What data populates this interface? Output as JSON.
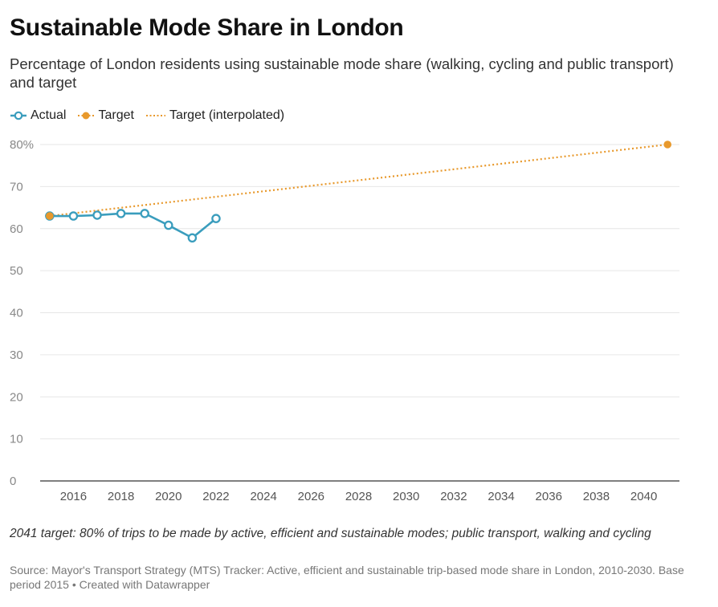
{
  "title": "Sustainable Mode Share in London",
  "subtitle": "Percentage of London residents using sustainable mode share (walking, cycling and public transport) and target",
  "legend": [
    {
      "label": "Actual",
      "icon": "line-circle-icon",
      "color": "#3a9dbd"
    },
    {
      "label": "Target",
      "icon": "dot-icon",
      "color": "#e8992c"
    },
    {
      "label": "Target (interpolated)",
      "icon": "dotted-line-icon",
      "color": "#e8992c"
    }
  ],
  "chart_data": {
    "type": "line",
    "title": "Sustainable Mode Share in London",
    "xlabel": "",
    "ylabel": "",
    "xlim": [
      2014.6,
      2041.5
    ],
    "ylim": [
      0,
      80
    ],
    "yticks": [
      0,
      10,
      20,
      30,
      40,
      50,
      60,
      70,
      80
    ],
    "ytick_labels": [
      "0",
      "10",
      "20",
      "30",
      "40",
      "50",
      "60",
      "70",
      "80%"
    ],
    "xticks": [
      2016,
      2018,
      2020,
      2022,
      2024,
      2026,
      2028,
      2030,
      2032,
      2034,
      2036,
      2038,
      2040
    ],
    "xtick_labels": [
      "2016",
      "2018",
      "2020",
      "2022",
      "2024",
      "2026",
      "2028",
      "2030",
      "2032",
      "2034",
      "2036",
      "2038",
      "2040"
    ],
    "grid": true,
    "series": [
      {
        "name": "Actual",
        "color": "#3a9dbd",
        "x": [
          2015,
          2016,
          2017,
          2018,
          2019,
          2020,
          2021,
          2022
        ],
        "values": [
          63,
          63,
          63.2,
          63.6,
          63.6,
          60.8,
          57.8,
          62.4
        ]
      },
      {
        "name": "Target",
        "color": "#e8992c",
        "x": [
          2015,
          2041
        ],
        "values": [
          63,
          80
        ]
      },
      {
        "name": "Target (interpolated)",
        "color": "#e8992c",
        "x": [
          2015,
          2041
        ],
        "values": [
          63,
          80
        ]
      }
    ]
  },
  "notes": "2041 target: 80% of trips to be made by active, efficient and sustainable modes; public transport, walking and cycling",
  "source": "Source: Mayor's Transport Strategy (MTS) Tracker: Active, efficient and sustainable trip-based mode share in London, 2010-2030. Base period 2015 • Created with Datawrapper"
}
